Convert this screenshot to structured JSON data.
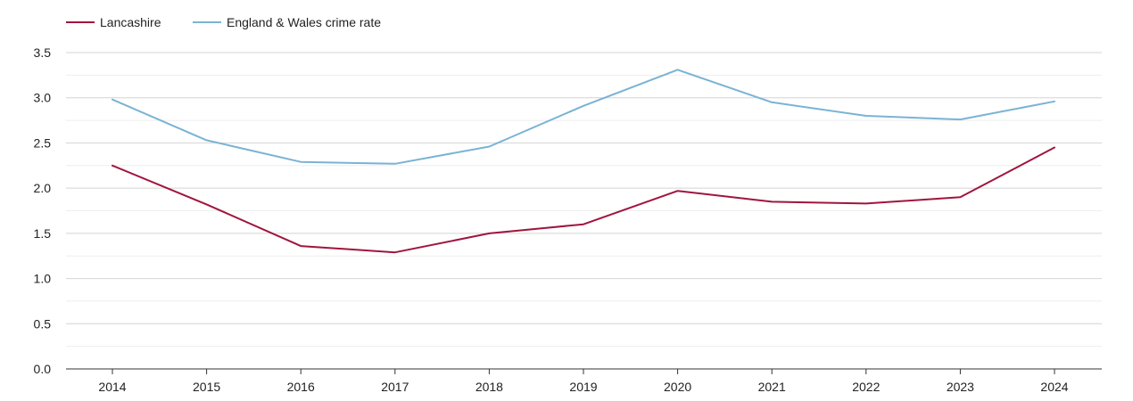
{
  "chart_data": {
    "type": "line",
    "title": "",
    "xlabel": "",
    "ylabel": "",
    "categories": [
      "2014",
      "2015",
      "2016",
      "2017",
      "2018",
      "2019",
      "2020",
      "2021",
      "2022",
      "2023",
      "2024"
    ],
    "ylim": [
      0,
      3.5
    ],
    "y_ticks": [
      "0.0",
      "0.5",
      "1.0",
      "1.5",
      "2.0",
      "2.5",
      "3.0",
      "3.5"
    ],
    "grid": true,
    "legend_position": "top-left",
    "series": [
      {
        "name": "Lancashire",
        "color": "#a0153e",
        "values": [
          2.25,
          1.82,
          1.36,
          1.29,
          1.5,
          1.6,
          1.97,
          1.85,
          1.83,
          1.9,
          2.45
        ]
      },
      {
        "name": "England & Wales crime rate",
        "color": "#7ab3d4",
        "values": [
          2.98,
          2.53,
          2.29,
          2.27,
          2.46,
          2.91,
          3.31,
          2.95,
          2.8,
          2.76,
          2.96
        ]
      }
    ]
  }
}
